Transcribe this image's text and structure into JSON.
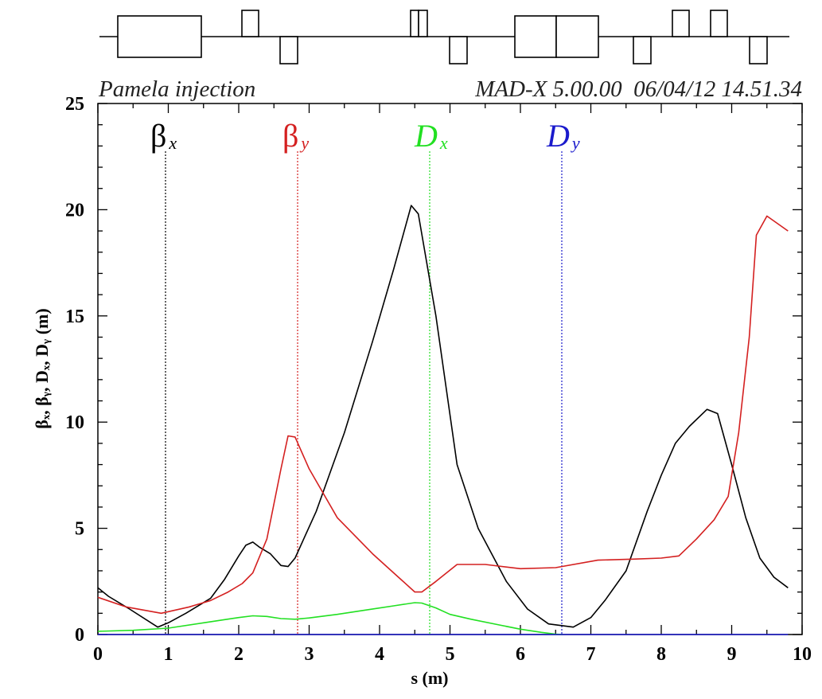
{
  "header": {
    "left_title": "Pamela injection",
    "right_title": "MAD-X 5.00.00  06/04/12 14.51.34"
  },
  "chart_data": {
    "type": "line",
    "xlabel": "s (m)",
    "ylabel": "βₓ, βᵧ, Dₓ, Dᵧ (m)",
    "xlim": [
      0,
      10
    ],
    "ylim": [
      0,
      25
    ],
    "x_ticks": [
      "0",
      "1",
      "2",
      "3",
      "4",
      "5",
      "6",
      "7",
      "8",
      "9",
      "10"
    ],
    "y_ticks": [
      "0",
      "5",
      "10",
      "15",
      "20",
      "25"
    ],
    "legend": [
      {
        "symbol": "β",
        "sub": "x",
        "color": "#000000"
      },
      {
        "symbol": "β",
        "sub": "y",
        "color": "#d42020"
      },
      {
        "symbol": "D",
        "sub": "x",
        "color": "#22e022"
      },
      {
        "symbol": "D",
        "sub": "y",
        "color": "#1a1acc"
      }
    ],
    "series": [
      {
        "color": "#000000",
        "x": [
          0,
          0.15,
          0.45,
          0.85,
          1.0,
          1.25,
          1.6,
          1.8,
          2.0,
          2.1,
          2.2,
          2.3,
          2.45,
          2.6,
          2.7,
          2.8,
          3.1,
          3.5,
          3.9,
          4.2,
          4.45,
          4.55,
          4.8,
          5.1,
          5.4,
          5.8,
          6.1,
          6.4,
          6.75,
          7.0,
          7.2,
          7.5,
          7.8,
          8.0,
          8.2,
          8.4,
          8.65,
          8.8,
          9.0,
          9.2,
          9.4,
          9.6,
          9.8
        ],
        "y": [
          2.2,
          1.8,
          1.2,
          0.35,
          0.55,
          1.0,
          1.7,
          2.6,
          3.7,
          4.2,
          4.35,
          4.1,
          3.8,
          3.25,
          3.2,
          3.6,
          5.8,
          9.5,
          13.8,
          17.2,
          20.2,
          19.8,
          15.0,
          8.0,
          5.0,
          2.5,
          1.2,
          0.5,
          0.35,
          0.8,
          1.6,
          3.0,
          5.8,
          7.5,
          9.0,
          9.8,
          10.6,
          10.4,
          8.0,
          5.5,
          3.6,
          2.7,
          2.2
        ]
      },
      {
        "color": "#d42020",
        "x": [
          0,
          0.4,
          0.9,
          1.3,
          1.6,
          1.85,
          2.05,
          2.2,
          2.4,
          2.6,
          2.7,
          2.8,
          3.0,
          3.4,
          3.9,
          4.3,
          4.5,
          4.6,
          4.8,
          5.1,
          5.5,
          6.0,
          6.5,
          7.1,
          7.6,
          8.0,
          8.25,
          8.5,
          8.75,
          8.95,
          9.1,
          9.25,
          9.35,
          9.5,
          9.8
        ],
        "y": [
          1.75,
          1.3,
          1.0,
          1.3,
          1.6,
          2.0,
          2.4,
          2.9,
          4.5,
          7.8,
          9.35,
          9.3,
          7.8,
          5.5,
          3.8,
          2.6,
          2.0,
          2.0,
          2.5,
          3.3,
          3.3,
          3.1,
          3.15,
          3.5,
          3.55,
          3.6,
          3.7,
          4.5,
          5.4,
          6.5,
          9.5,
          14.0,
          18.8,
          19.7,
          19.0
        ]
      },
      {
        "color": "#22e022",
        "x": [
          0,
          0.5,
          1.0,
          1.5,
          1.8,
          2.0,
          2.2,
          2.4,
          2.6,
          2.8,
          3.0,
          3.4,
          3.8,
          4.2,
          4.5,
          4.6,
          4.8,
          5.0,
          5.3,
          5.7,
          6.0,
          6.3,
          6.5,
          6.6
        ],
        "y": [
          0.15,
          0.2,
          0.3,
          0.55,
          0.7,
          0.8,
          0.88,
          0.85,
          0.75,
          0.72,
          0.78,
          0.95,
          1.15,
          1.35,
          1.5,
          1.48,
          1.25,
          0.95,
          0.72,
          0.45,
          0.25,
          0.1,
          0.02,
          0.0
        ]
      },
      {
        "color": "#1a1acc",
        "x": [
          0,
          9.8
        ],
        "y": [
          0,
          0
        ]
      }
    ]
  },
  "colors": {
    "legend_guides": [
      "#000000",
      "#d42020",
      "#22e022",
      "#1a1acc"
    ]
  }
}
